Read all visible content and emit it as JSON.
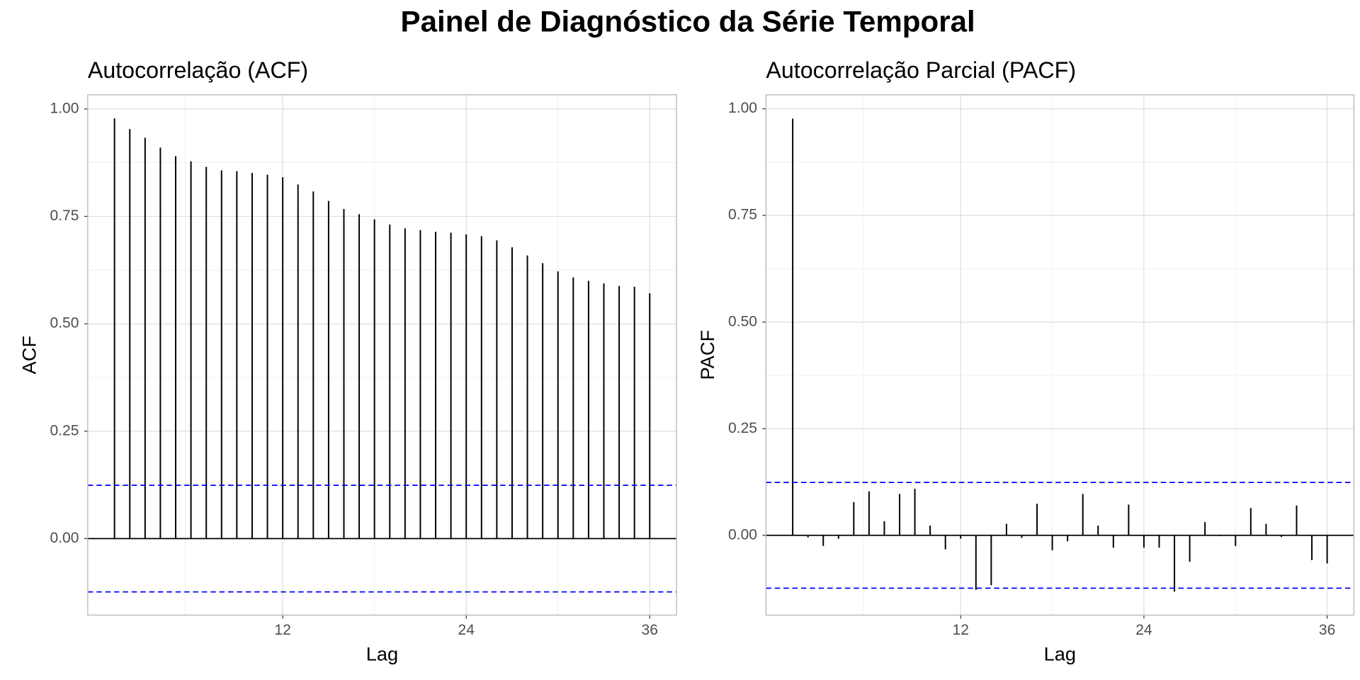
{
  "title": "Painel de Diagnóstico da Série Temporal",
  "chart_data": [
    {
      "type": "bar",
      "title": "Autocorrelação (ACF)",
      "xlabel": "Lag",
      "ylabel": "ACF",
      "x": [
        1,
        2,
        3,
        4,
        5,
        6,
        7,
        8,
        9,
        10,
        11,
        12,
        13,
        14,
        15,
        16,
        17,
        18,
        19,
        20,
        21,
        22,
        23,
        24,
        25,
        26,
        27,
        28,
        29,
        30,
        31,
        32,
        33,
        34,
        35,
        36
      ],
      "values": [
        0.978,
        0.953,
        0.933,
        0.91,
        0.89,
        0.878,
        0.865,
        0.857,
        0.855,
        0.851,
        0.847,
        0.841,
        0.824,
        0.808,
        0.786,
        0.767,
        0.755,
        0.743,
        0.731,
        0.722,
        0.718,
        0.714,
        0.712,
        0.708,
        0.704,
        0.694,
        0.678,
        0.659,
        0.641,
        0.622,
        0.608,
        0.6,
        0.594,
        0.588,
        0.586,
        0.571
      ],
      "color": "#000000",
      "confidence_lines": [
        0.124,
        -0.124
      ],
      "confidence_color": "#0000ff",
      "xlim": [
        -0.75,
        37.75
      ],
      "ylim": [
        -0.178,
        1.033
      ],
      "xticks": [
        12,
        24,
        36
      ],
      "yticks": [
        {
          "value": 0,
          "label": "0.00"
        },
        {
          "value": 0.25,
          "label": "0.25"
        },
        {
          "value": 0.5,
          "label": "0.50"
        },
        {
          "value": 0.75,
          "label": "0.75"
        },
        {
          "value": 1,
          "label": "1.00"
        }
      ],
      "grid": true
    },
    {
      "type": "bar",
      "title": "Autocorrelação Parcial (PACF)",
      "xlabel": "Lag",
      "ylabel": "PACF",
      "x": [
        1,
        2,
        3,
        4,
        5,
        6,
        7,
        8,
        9,
        10,
        11,
        12,
        13,
        14,
        15,
        16,
        17,
        18,
        19,
        20,
        21,
        22,
        23,
        24,
        25,
        26,
        27,
        28,
        29,
        30,
        31,
        32,
        33,
        34,
        35,
        36
      ],
      "values": [
        0.977,
        -0.005,
        -0.025,
        -0.008,
        0.078,
        0.103,
        0.033,
        0.097,
        0.109,
        0.023,
        -0.033,
        -0.008,
        -0.128,
        -0.117,
        0.027,
        -0.006,
        0.074,
        -0.035,
        -0.014,
        0.097,
        0.023,
        -0.029,
        0.072,
        -0.029,
        -0.029,
        -0.132,
        -0.062,
        0.031,
        -0.002,
        -0.025,
        0.064,
        0.027,
        -0.004,
        0.07,
        -0.058,
        -0.066
      ],
      "color": "#000000",
      "confidence_lines": [
        0.124,
        -0.124
      ],
      "confidence_color": "#0000ff",
      "xlim": [
        -0.75,
        37.75
      ],
      "ylim": [
        -0.187,
        1.033
      ],
      "xticks": [
        12,
        24,
        36
      ],
      "yticks": [
        {
          "value": 0,
          "label": "0.00"
        },
        {
          "value": 0.25,
          "label": "0.25"
        },
        {
          "value": 0.5,
          "label": "0.50"
        },
        {
          "value": 0.75,
          "label": "0.75"
        },
        {
          "value": 1,
          "label": "1.00"
        }
      ],
      "grid": true
    }
  ]
}
